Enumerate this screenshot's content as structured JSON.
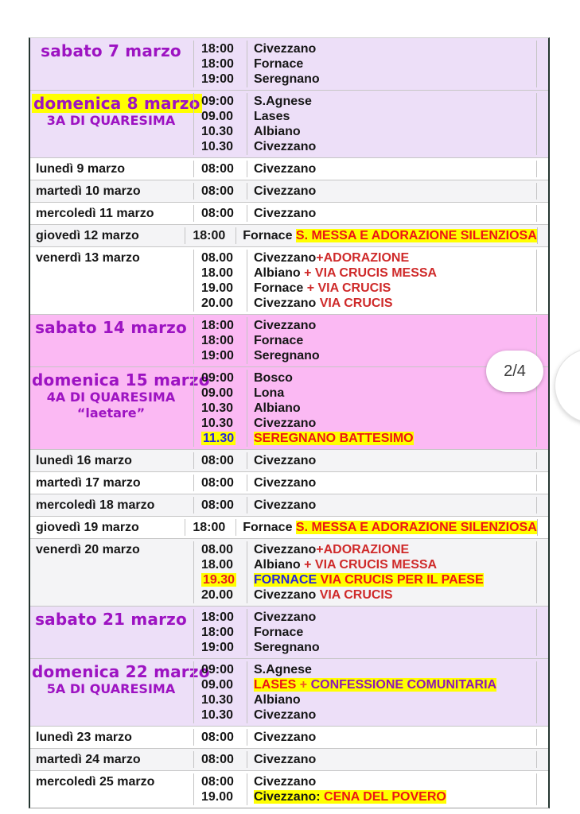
{
  "badge": {
    "label": "2/4"
  },
  "colors": {
    "weekend_lavender": "#eddff8",
    "weekend_pink": "#fbb9f3",
    "zebra_gray": "#f4f4f6",
    "header_purple": "#9d13c2",
    "annotation_red": "#cf2a2a",
    "highlight_yellow": "#ffff00",
    "highlight_blue": "#2424e0"
  },
  "rows": [
    {
      "bg": "lavender",
      "center": true,
      "date_lines": [
        {
          "cls": "hdr",
          "text": "sabato 7 marzo"
        }
      ],
      "entries": [
        {
          "time": "18:00",
          "tcls": "",
          "loc": [
            {
              "cls": "b",
              "text": "Civezzano"
            }
          ]
        },
        {
          "time": "18:00",
          "tcls": "",
          "loc": [
            {
              "cls": "b",
              "text": "Fornace"
            }
          ]
        },
        {
          "time": "19:00",
          "tcls": "",
          "loc": [
            {
              "cls": "b",
              "text": "Seregnano"
            }
          ]
        }
      ]
    },
    {
      "bg": "lavender",
      "center": true,
      "date_lines": [
        {
          "cls": "hdr",
          "hl": true,
          "text": "domenica 8 marzo"
        },
        {
          "cls": "subhdr",
          "text": "3A DI QUARESIMA"
        }
      ],
      "entries": [
        {
          "time": "09:00",
          "tcls": "",
          "loc": [
            {
              "cls": "b",
              "text": "S.Agnese"
            }
          ]
        },
        {
          "time": "09.00",
          "tcls": "",
          "loc": [
            {
              "cls": "b",
              "text": "Lases"
            }
          ]
        },
        {
          "time": "10.30",
          "tcls": "",
          "loc": [
            {
              "cls": "b",
              "text": "Albiano"
            }
          ]
        },
        {
          "time": "10.30",
          "tcls": "",
          "loc": [
            {
              "cls": "b",
              "text": "Civezzano"
            }
          ]
        }
      ]
    },
    {
      "bg": "white",
      "center": false,
      "date_lines": [
        {
          "cls": "day",
          "text": "lunedì 9 marzo"
        }
      ],
      "entries": [
        {
          "time": "08:00",
          "tcls": "",
          "loc": [
            {
              "cls": "b",
              "text": "Civezzano"
            }
          ]
        }
      ]
    },
    {
      "bg": "gray",
      "center": false,
      "date_lines": [
        {
          "cls": "day",
          "text": "martedì 10 marzo"
        }
      ],
      "entries": [
        {
          "time": "08:00",
          "tcls": "",
          "loc": [
            {
              "cls": "b",
              "text": "Civezzano"
            }
          ]
        }
      ]
    },
    {
      "bg": "white",
      "center": false,
      "date_lines": [
        {
          "cls": "day",
          "text": "mercoledì 11 marzo"
        }
      ],
      "entries": [
        {
          "time": "08:00",
          "tcls": "",
          "loc": [
            {
              "cls": "b",
              "text": "Civezzano"
            }
          ]
        }
      ]
    },
    {
      "bg": "gray",
      "center": false,
      "date_lines": [
        {
          "cls": "day",
          "text": "giovedì 12 marzo"
        }
      ],
      "entries": [
        {
          "time": "18:00",
          "tcls": "",
          "loc": [
            {
              "cls": "b",
              "text": "Fornace "
            },
            {
              "cls": "red-hl",
              "text": "S. MESSA E ADORAZIONE SILENZIOSA"
            }
          ]
        }
      ]
    },
    {
      "bg": "white",
      "center": false,
      "date_lines": [
        {
          "cls": "day",
          "text": "venerdì 13 marzo"
        }
      ],
      "entries": [
        {
          "time": "08.00",
          "tcls": "",
          "loc": [
            {
              "cls": "b",
              "text": "Civezzano"
            },
            {
              "cls": "red",
              "text": "+ADORAZIONE"
            }
          ]
        },
        {
          "time": "18.00",
          "tcls": "",
          "loc": [
            {
              "cls": "b",
              "text": "Albiano "
            },
            {
              "cls": "red",
              "text": "+ VIA CRUCIS MESSA"
            }
          ]
        },
        {
          "time": "19.00",
          "tcls": "",
          "loc": [
            {
              "cls": "b",
              "text": "Fornace "
            },
            {
              "cls": "red",
              "text": "+ VIA CRUCIS"
            }
          ]
        },
        {
          "time": "20.00",
          "tcls": "",
          "loc": [
            {
              "cls": "b",
              "text": "Civezzano "
            },
            {
              "cls": "red",
              "text": "VIA CRUCIS"
            }
          ]
        }
      ]
    },
    {
      "bg": "pink",
      "center": true,
      "date_lines": [
        {
          "cls": "hdr",
          "text": "sabato 14 marzo"
        }
      ],
      "entries": [
        {
          "time": "18:00",
          "tcls": "",
          "loc": [
            {
              "cls": "b",
              "text": "Civezzano"
            }
          ]
        },
        {
          "time": "18:00",
          "tcls": "",
          "loc": [
            {
              "cls": "b",
              "text": "Fornace"
            }
          ]
        },
        {
          "time": "19:00",
          "tcls": "",
          "loc": [
            {
              "cls": "b",
              "text": "Seregnano"
            }
          ]
        }
      ]
    },
    {
      "bg": "pink",
      "center": true,
      "date_lines": [
        {
          "cls": "hdr",
          "text": "domenica 15 marzo"
        },
        {
          "cls": "subhdr",
          "text": "4A DI QUARESIMA"
        },
        {
          "cls": "subhdr",
          "text": "“laetare”"
        }
      ],
      "entries": [
        {
          "time": "09:00",
          "tcls": "",
          "loc": [
            {
              "cls": "b",
              "text": "Bosco"
            }
          ]
        },
        {
          "time": "09.00",
          "tcls": "",
          "loc": [
            {
              "cls": "b",
              "text": "Lona"
            }
          ]
        },
        {
          "time": "10.30",
          "tcls": "",
          "loc": [
            {
              "cls": "b",
              "text": "Albiano"
            }
          ]
        },
        {
          "time": "10.30",
          "tcls": "",
          "loc": [
            {
              "cls": "b",
              "text": "Civezzano"
            }
          ]
        },
        {
          "time": "11.30",
          "tcls": "t-blue-hl",
          "loc": [
            {
              "cls": "red-hl",
              "text": "SEREGNANO BATTESIMO"
            }
          ]
        }
      ]
    },
    {
      "bg": "gray",
      "center": false,
      "date_lines": [
        {
          "cls": "day",
          "text": "lunedì 16 marzo"
        }
      ],
      "entries": [
        {
          "time": "08:00",
          "tcls": "",
          "loc": [
            {
              "cls": "b",
              "text": "Civezzano"
            }
          ]
        }
      ]
    },
    {
      "bg": "white",
      "center": false,
      "date_lines": [
        {
          "cls": "day",
          "text": "martedì 17 marzo"
        }
      ],
      "entries": [
        {
          "time": "08:00",
          "tcls": "",
          "loc": [
            {
              "cls": "b",
              "text": "Civezzano"
            }
          ]
        }
      ]
    },
    {
      "bg": "gray",
      "center": false,
      "date_lines": [
        {
          "cls": "day",
          "text": "mercoledì 18 marzo"
        }
      ],
      "entries": [
        {
          "time": "08:00",
          "tcls": "",
          "loc": [
            {
              "cls": "b",
              "text": "Civezzano"
            }
          ]
        }
      ]
    },
    {
      "bg": "white",
      "center": false,
      "date_lines": [
        {
          "cls": "day",
          "text": "giovedì 19 marzo"
        }
      ],
      "entries": [
        {
          "time": "18:00",
          "tcls": "",
          "loc": [
            {
              "cls": "b",
              "text": "Fornace "
            },
            {
              "cls": "red-hl",
              "text": "S. MESSA E ADORAZIONE SILENZIOSA"
            }
          ]
        }
      ]
    },
    {
      "bg": "gray",
      "center": false,
      "date_lines": [
        {
          "cls": "day",
          "text": "venerdì 20 marzo"
        }
      ],
      "entries": [
        {
          "time": "08.00",
          "tcls": "",
          "loc": [
            {
              "cls": "b",
              "text": "Civezzano"
            },
            {
              "cls": "red",
              "text": "+ADORAZIONE"
            }
          ]
        },
        {
          "time": "18.00",
          "tcls": "",
          "loc": [
            {
              "cls": "b",
              "text": "Albiano "
            },
            {
              "cls": "red",
              "text": "+ VIA CRUCIS MESSA"
            }
          ]
        },
        {
          "time": "19.30",
          "tcls": "t-red-hl",
          "loc": [
            {
              "cls": "blue-hl",
              "text": "FORNACE"
            },
            {
              "cls": "red-hl",
              "text": " VIA CRUCIS PER IL PAESE"
            }
          ]
        },
        {
          "time": "20.00",
          "tcls": "",
          "loc": [
            {
              "cls": "b",
              "text": "Civezzano "
            },
            {
              "cls": "red",
              "text": "VIA CRUCIS"
            }
          ]
        }
      ]
    },
    {
      "bg": "lavender",
      "center": true,
      "date_lines": [
        {
          "cls": "hdr",
          "text": "sabato 21 marzo"
        }
      ],
      "entries": [
        {
          "time": "18:00",
          "tcls": "",
          "loc": [
            {
              "cls": "b",
              "text": "Civezzano"
            }
          ]
        },
        {
          "time": "18:00",
          "tcls": "",
          "loc": [
            {
              "cls": "b",
              "text": "Fornace"
            }
          ]
        },
        {
          "time": "19:00",
          "tcls": "",
          "loc": [
            {
              "cls": "b",
              "text": "Seregnano"
            }
          ]
        }
      ]
    },
    {
      "bg": "lavender",
      "center": true,
      "date_lines": [
        {
          "cls": "hdr",
          "text": "domenica 22 marzo"
        },
        {
          "cls": "subhdr",
          "text": "5A DI QUARESIMA"
        }
      ],
      "entries": [
        {
          "time": "09:00",
          "tcls": "",
          "loc": [
            {
              "cls": "b",
              "text": "S.Agnese"
            }
          ]
        },
        {
          "time": "09.00",
          "tcls": "",
          "loc": [
            {
              "cls": "red-hl",
              "text": "LASES"
            },
            {
              "cls": "orange-hl",
              "text": " + "
            },
            {
              "cls": "purple-hl",
              "text": "CONFESSIONE COMUNITARIA"
            }
          ]
        },
        {
          "time": "10.30",
          "tcls": "",
          "loc": [
            {
              "cls": "b",
              "text": "Albiano"
            }
          ]
        },
        {
          "time": "10.30",
          "tcls": "",
          "loc": [
            {
              "cls": "b",
              "text": "Civezzano"
            }
          ]
        }
      ]
    },
    {
      "bg": "white",
      "center": false,
      "date_lines": [
        {
          "cls": "day",
          "text": "lunedì 23 marzo"
        }
      ],
      "entries": [
        {
          "time": "08:00",
          "tcls": "",
          "loc": [
            {
              "cls": "b",
              "text": "Civezzano"
            }
          ]
        }
      ]
    },
    {
      "bg": "gray",
      "center": false,
      "date_lines": [
        {
          "cls": "day",
          "text": "martedì 24 marzo"
        }
      ],
      "entries": [
        {
          "time": "08:00",
          "tcls": "",
          "loc": [
            {
              "cls": "b",
              "text": "Civezzano"
            }
          ]
        }
      ]
    },
    {
      "bg": "white",
      "center": false,
      "date_lines": [
        {
          "cls": "day",
          "text": "mercoledì 25 marzo"
        }
      ],
      "entries": [
        {
          "time": "08:00",
          "tcls": "",
          "loc": [
            {
              "cls": "b",
              "text": "Civezzano"
            }
          ]
        },
        {
          "time": "19.00",
          "tcls": "",
          "loc": [
            {
              "cls": "black-hl",
              "text": "Civezzano: "
            },
            {
              "cls": "red-hl",
              "text": "CENA DEL POVERO"
            }
          ]
        }
      ]
    }
  ]
}
